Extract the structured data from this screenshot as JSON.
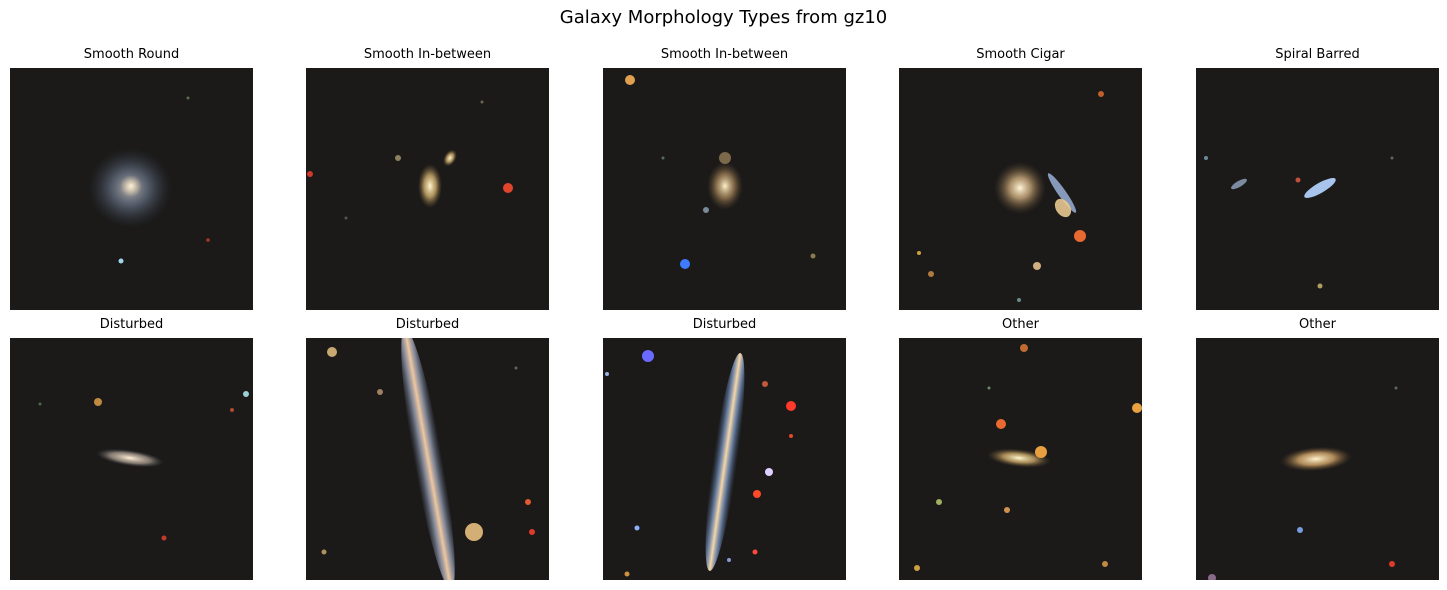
{
  "figure": {
    "title": "Galaxy Morphology Types from gz10"
  },
  "panels": [
    {
      "label": "Smooth Round"
    },
    {
      "label": "Smooth In-between"
    },
    {
      "label": "Smooth In-between"
    },
    {
      "label": "Smooth Cigar"
    },
    {
      "label": "Spiral Barred"
    },
    {
      "label": "Disturbed"
    },
    {
      "label": "Disturbed"
    },
    {
      "label": "Disturbed"
    },
    {
      "label": "Other"
    },
    {
      "label": "Other"
    }
  ],
  "colors": {
    "sky_background": "#1b1a19"
  }
}
